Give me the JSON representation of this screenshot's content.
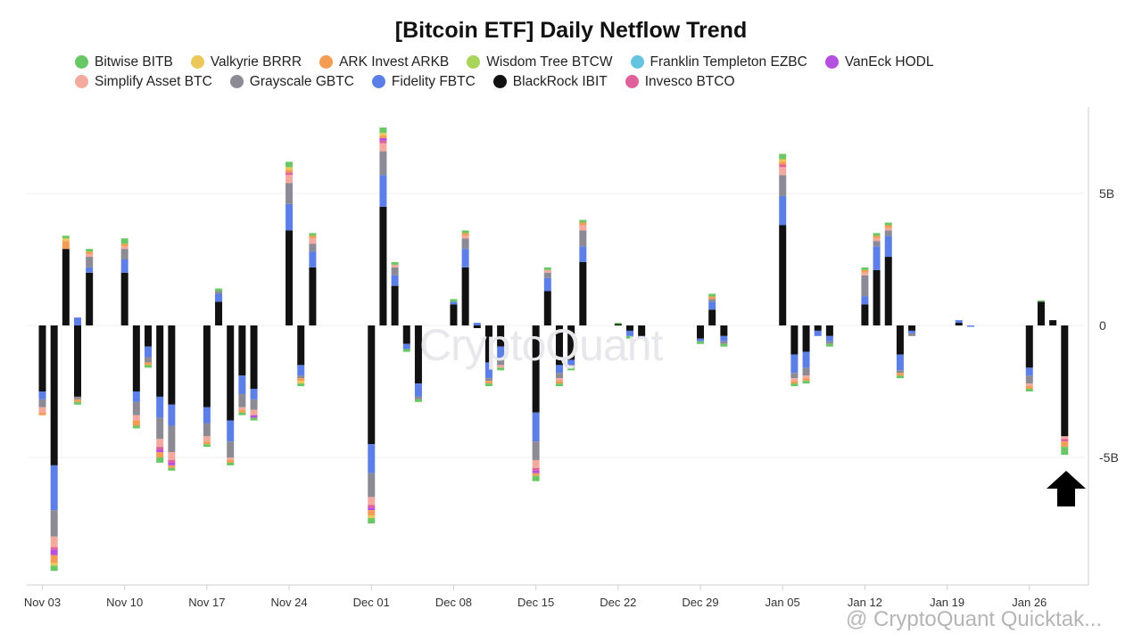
{
  "chart_data": {
    "type": "stacked-bar",
    "title": "[Bitcoin ETF] Daily Netflow Trend",
    "xlabel": "",
    "ylabel": "",
    "ylim": [
      -9.9,
      8.2
    ],
    "y_ticks": [
      {
        "value": 5,
        "label": "5B"
      },
      {
        "value": 0,
        "label": "0"
      },
      {
        "value": -5,
        "label": "-5B"
      }
    ],
    "x_tick_labels": [
      "Nov 03",
      "Nov 10",
      "Nov 17",
      "Nov 24",
      "Dec 01",
      "Dec 08",
      "Dec 15",
      "Dec 22",
      "Dec 29",
      "Jan 05",
      "Jan 12",
      "Jan 19",
      "Jan 26"
    ],
    "x_tick_days": [
      0,
      7,
      14,
      21,
      28,
      35,
      42,
      49,
      56,
      63,
      70,
      77,
      84
    ],
    "x_range_days": [
      -1,
      90
    ],
    "grid": true,
    "legend_position": "top",
    "series": [
      {
        "name": "BlackRock IBIT",
        "color": "#111111"
      },
      {
        "name": "Fidelity FBTC",
        "color": "#5b7fe6"
      },
      {
        "name": "Grayscale GBTC",
        "color": "#8c8a94"
      },
      {
        "name": "Simplify Asset BTC",
        "color": "#f3a99e"
      },
      {
        "name": "Invesco BTCO",
        "color": "#e0609a"
      },
      {
        "name": "VanEck HODL",
        "color": "#b54fe0"
      },
      {
        "name": "Franklin Templeton EZBC",
        "color": "#66c4e0"
      },
      {
        "name": "Wisdom Tree BTCW",
        "color": "#a9d45a"
      },
      {
        "name": "ARK Invest ARKB",
        "color": "#f29c54"
      },
      {
        "name": "Valkyrie BRRR",
        "color": "#ecc75a"
      },
      {
        "name": "Bitwise BITB",
        "color": "#6ac765"
      }
    ],
    "days": [
      0,
      1,
      2,
      3,
      4,
      7,
      8,
      9,
      10,
      11,
      14,
      15,
      16,
      17,
      18,
      21,
      22,
      23,
      28,
      29,
      30,
      31,
      32,
      35,
      36,
      37,
      38,
      39,
      42,
      43,
      44,
      45,
      46,
      49,
      50,
      51,
      56,
      57,
      58,
      63,
      64,
      65,
      66,
      67,
      70,
      71,
      72,
      73,
      74,
      78,
      79,
      84,
      85,
      86,
      87
    ],
    "values": [
      [
        -2.5,
        -0.3,
        -0.3,
        -0.2,
        0.0,
        0.0,
        0.0,
        0.0,
        -0.1,
        0.0,
        0.0
      ],
      [
        -5.3,
        -1.7,
        -1.0,
        -0.4,
        -0.1,
        -0.2,
        0.0,
        0.0,
        -0.3,
        -0.1,
        -0.2
      ],
      [
        2.9,
        0.0,
        0.0,
        0.0,
        0.0,
        0.0,
        0.0,
        0.0,
        0.3,
        0.1,
        0.1
      ],
      [
        -2.7,
        0.3,
        -0.1,
        0.0,
        0.0,
        0.0,
        0.0,
        0.0,
        -0.1,
        0.0,
        -0.1
      ],
      [
        2.0,
        0.2,
        0.4,
        0.1,
        0.0,
        0.0,
        0.0,
        0.0,
        0.1,
        0.0,
        0.1
      ],
      [
        2.0,
        0.5,
        0.4,
        0.1,
        0.0,
        0.0,
        0.0,
        0.0,
        0.1,
        0.0,
        0.2
      ],
      [
        -2.5,
        -0.4,
        -0.5,
        -0.2,
        0.0,
        0.0,
        0.0,
        0.0,
        -0.2,
        0.0,
        -0.1
      ],
      [
        -0.8,
        -0.4,
        -0.2,
        0.0,
        0.0,
        0.0,
        0.0,
        0.0,
        -0.1,
        0.0,
        -0.1
      ],
      [
        -2.7,
        -0.8,
        -0.8,
        -0.3,
        -0.1,
        -0.1,
        0.0,
        0.0,
        -0.2,
        0.0,
        -0.2
      ],
      [
        -3.0,
        -0.8,
        -1.0,
        -0.3,
        -0.1,
        -0.1,
        0.0,
        0.0,
        -0.1,
        0.0,
        -0.1
      ],
      [
        -3.1,
        -0.6,
        -0.5,
        -0.2,
        0.0,
        0.0,
        0.0,
        0.0,
        -0.1,
        0.0,
        -0.1
      ],
      [
        0.9,
        0.3,
        0.1,
        0.0,
        0.0,
        0.0,
        0.0,
        0.0,
        0.0,
        0.0,
        0.1
      ],
      [
        -3.6,
        -0.8,
        -0.6,
        -0.1,
        0.0,
        0.0,
        0.0,
        0.0,
        -0.1,
        0.0,
        -0.1
      ],
      [
        -1.9,
        -0.7,
        -0.5,
        -0.1,
        0.0,
        0.0,
        0.0,
        0.0,
        -0.1,
        0.0,
        -0.1
      ],
      [
        -2.4,
        -0.4,
        -0.4,
        -0.2,
        0.0,
        -0.1,
        0.0,
        0.0,
        0.0,
        0.0,
        -0.1
      ],
      [
        3.6,
        1.0,
        0.8,
        0.3,
        0.1,
        0.0,
        0.0,
        0.0,
        0.1,
        0.1,
        0.2
      ],
      [
        -1.5,
        -0.4,
        -0.1,
        0.0,
        0.0,
        0.0,
        0.0,
        0.0,
        -0.1,
        -0.1,
        -0.1
      ],
      [
        2.2,
        0.6,
        0.3,
        0.2,
        0.0,
        0.0,
        0.0,
        0.0,
        0.1,
        0.0,
        0.1
      ],
      [
        -4.5,
        -1.1,
        -0.9,
        -0.3,
        -0.1,
        -0.1,
        0.0,
        0.0,
        -0.2,
        -0.1,
        -0.2
      ],
      [
        4.5,
        1.2,
        0.9,
        0.3,
        0.1,
        0.1,
        0.0,
        0.0,
        0.1,
        0.1,
        0.2
      ],
      [
        1.5,
        0.4,
        0.3,
        0.1,
        0.0,
        0.0,
        0.0,
        0.0,
        0.0,
        0.0,
        0.1
      ],
      [
        -0.7,
        -0.2,
        0.0,
        0.0,
        0.0,
        0.0,
        0.0,
        0.0,
        0.0,
        0.0,
        -0.1
      ],
      [
        -2.2,
        -0.5,
        -0.1,
        0.0,
        0.0,
        0.0,
        0.0,
        0.0,
        0.0,
        0.0,
        -0.1
      ],
      [
        0.8,
        0.1,
        0.0,
        0.0,
        0.0,
        0.0,
        0.0,
        0.0,
        0.0,
        0.0,
        0.1
      ],
      [
        2.2,
        0.7,
        0.4,
        0.1,
        0.0,
        0.0,
        0.0,
        0.0,
        0.1,
        0.0,
        0.1
      ],
      [
        -0.1,
        0.1,
        0.0,
        0.0,
        0.0,
        0.0,
        0.0,
        0.0,
        0.0,
        0.0,
        0.0
      ],
      [
        -1.4,
        -0.6,
        -0.1,
        0.0,
        0.0,
        0.0,
        0.0,
        0.0,
        -0.1,
        0.0,
        -0.1
      ],
      [
        -0.8,
        -0.5,
        -0.2,
        -0.1,
        0.0,
        0.0,
        0.0,
        0.0,
        0.0,
        0.0,
        -0.1
      ],
      [
        -3.3,
        -1.1,
        -0.7,
        -0.3,
        -0.1,
        -0.1,
        0.0,
        0.0,
        -0.1,
        0.0,
        -0.2
      ],
      [
        1.3,
        0.5,
        0.2,
        0.1,
        0.0,
        0.0,
        0.0,
        0.0,
        0.0,
        0.0,
        0.1
      ],
      [
        -1.5,
        -0.3,
        -0.2,
        -0.1,
        0.0,
        0.0,
        0.0,
        0.0,
        -0.1,
        0.0,
        -0.1
      ],
      [
        -1.3,
        -0.2,
        -0.1,
        0.0,
        0.0,
        0.0,
        0.0,
        0.0,
        0.0,
        0.0,
        -0.1
      ],
      [
        2.4,
        0.6,
        0.6,
        0.2,
        0.0,
        0.0,
        0.0,
        0.0,
        0.1,
        0.0,
        0.1
      ],
      [
        0.05,
        0.0,
        0.0,
        0.0,
        0.0,
        0.0,
        0.0,
        0.0,
        0.0,
        0.0,
        0.05
      ],
      [
        -0.2,
        -0.2,
        0.0,
        0.0,
        0.0,
        0.0,
        0.0,
        0.0,
        0.0,
        0.0,
        -0.1
      ],
      [
        -0.4,
        -0.1,
        0.0,
        0.0,
        0.0,
        0.0,
        0.0,
        0.0,
        0.0,
        0.0,
        0.0
      ],
      [
        -0.5,
        -0.1,
        0.0,
        0.0,
        0.0,
        0.0,
        0.0,
        0.0,
        0.0,
        0.0,
        -0.1
      ],
      [
        0.6,
        0.3,
        0.1,
        0.0,
        0.0,
        0.0,
        0.0,
        0.0,
        0.1,
        0.0,
        0.1
      ],
      [
        -0.4,
        -0.2,
        -0.1,
        0.0,
        0.0,
        0.0,
        0.0,
        0.0,
        0.0,
        0.0,
        -0.1
      ],
      [
        3.8,
        1.1,
        0.8,
        0.3,
        0.1,
        0.0,
        0.0,
        0.0,
        0.1,
        0.1,
        0.2
      ],
      [
        -1.1,
        -0.7,
        -0.2,
        -0.1,
        0.0,
        0.0,
        0.0,
        0.0,
        -0.1,
        0.0,
        -0.1
      ],
      [
        -1.0,
        -0.6,
        -0.3,
        -0.1,
        0.0,
        0.0,
        0.0,
        0.0,
        -0.1,
        0.0,
        -0.1
      ],
      [
        -0.2,
        -0.2,
        0.0,
        0.0,
        0.0,
        0.0,
        0.0,
        0.0,
        0.0,
        0.0,
        0.0
      ],
      [
        -0.4,
        -0.2,
        -0.1,
        0.0,
        0.0,
        0.0,
        0.0,
        0.0,
        0.0,
        0.0,
        -0.1
      ],
      [
        0.8,
        0.3,
        0.8,
        0.1,
        0.0,
        0.0,
        0.0,
        0.0,
        0.1,
        0.0,
        0.1
      ],
      [
        2.1,
        0.9,
        0.2,
        0.1,
        0.0,
        0.0,
        0.0,
        0.0,
        0.1,
        0.0,
        0.1
      ],
      [
        2.6,
        0.8,
        0.2,
        0.1,
        0.0,
        0.0,
        0.0,
        0.0,
        0.1,
        0.0,
        0.1
      ],
      [
        -1.1,
        -0.6,
        -0.1,
        0.0,
        0.0,
        0.0,
        0.0,
        0.0,
        -0.1,
        0.0,
        -0.1
      ],
      [
        -0.2,
        -0.1,
        -0.1,
        0.0,
        0.0,
        0.0,
        0.0,
        0.0,
        0.0,
        0.0,
        0.0
      ],
      [
        0.1,
        0.1,
        0.0,
        0.0,
        0.0,
        0.0,
        0.0,
        0.0,
        0.0,
        0.0,
        0.0
      ],
      [
        0.0,
        -0.05,
        0.0,
        0.0,
        0.0,
        0.0,
        0.0,
        0.0,
        0.0,
        0.0,
        0.0
      ],
      [
        -1.6,
        -0.3,
        -0.3,
        -0.1,
        0.0,
        0.0,
        0.0,
        0.0,
        -0.1,
        0.0,
        -0.1
      ],
      [
        0.9,
        0.0,
        0.0,
        0.0,
        0.0,
        0.0,
        0.0,
        0.0,
        0.0,
        0.0,
        0.05
      ],
      [
        0.2,
        0.0,
        0.0,
        0.0,
        0.0,
        0.0,
        0.0,
        0.0,
        0.0,
        0.0,
        0.0
      ],
      [
        -4.2,
        0.0,
        0.0,
        -0.1,
        -0.1,
        0.0,
        0.0,
        0.0,
        -0.2,
        0.0,
        -0.3
      ]
    ]
  },
  "watermark": "CryptoQuant",
  "corner_watermark": "@ CryptoQuant Quicktak...",
  "arrow_icon": "up-arrow-icon"
}
